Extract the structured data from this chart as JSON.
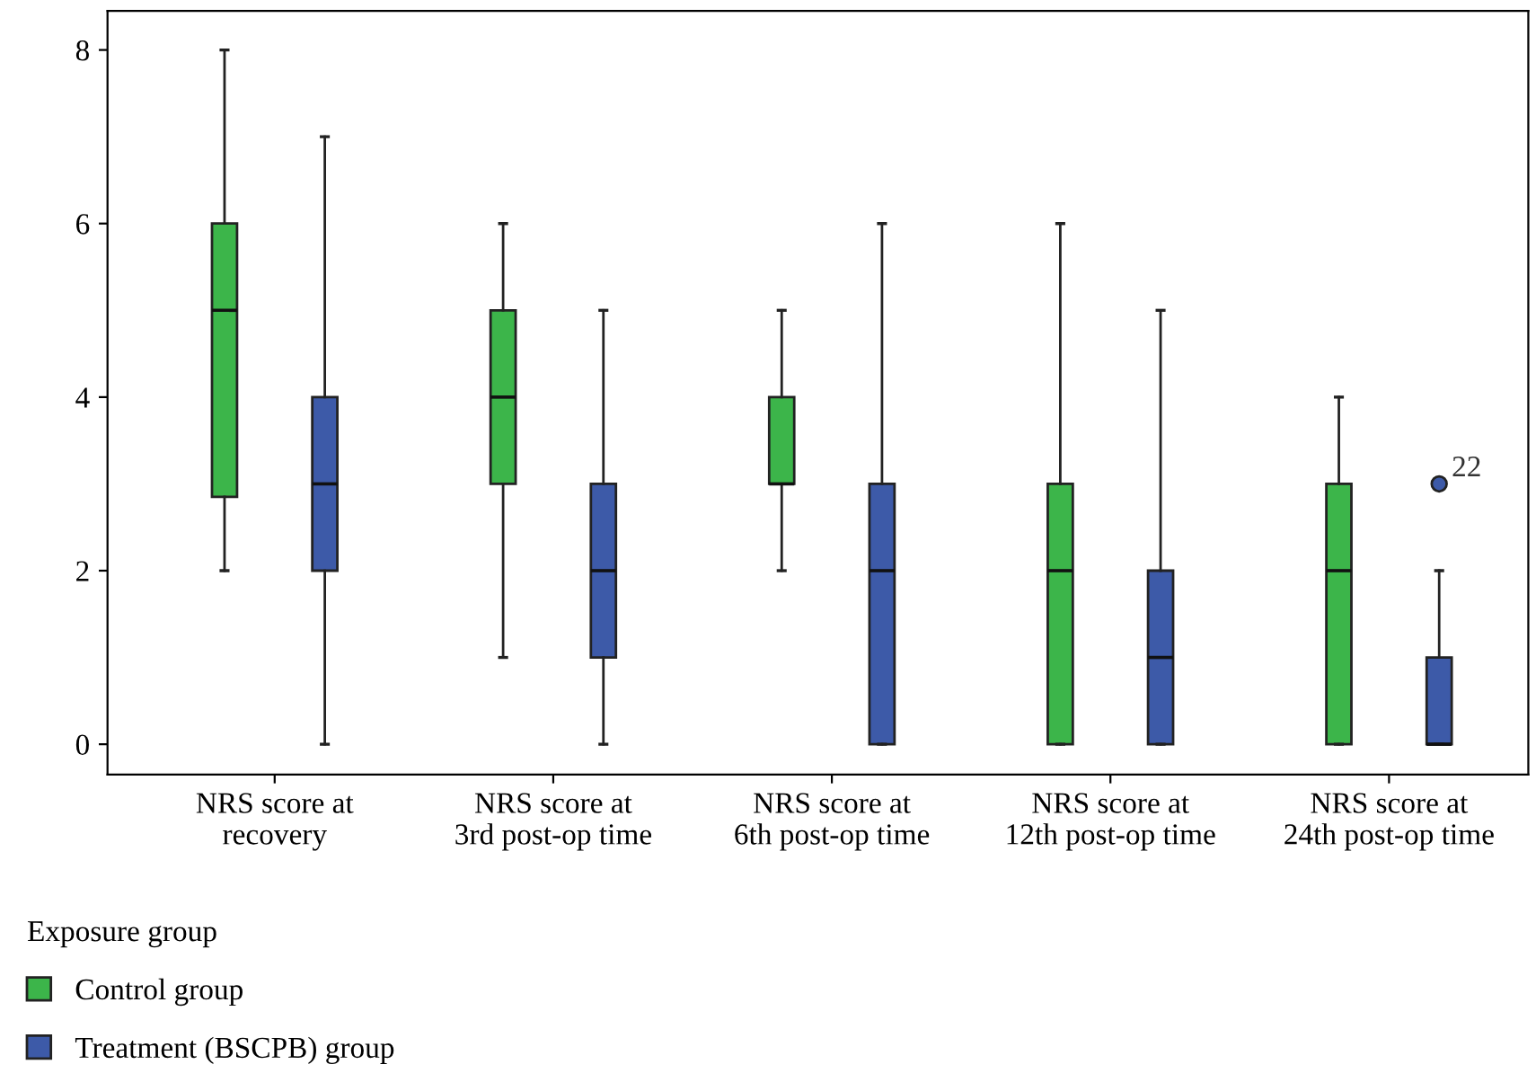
{
  "chart_data": {
    "type": "box",
    "categories": [
      "NRS score at\nrecovery",
      "NRS score at\n3rd post-op time",
      "NRS score at\n6th post-op time",
      "NRS score at\n12th post-op time",
      "NRS score at\n24th post-op time"
    ],
    "series": [
      {
        "name": "Control group",
        "color": "#3cb54a",
        "boxes": [
          {
            "low": 2,
            "q1": 2.85,
            "median": 5,
            "q3": 6,
            "high": 8
          },
          {
            "low": 1,
            "q1": 3,
            "median": 4,
            "q3": 5,
            "high": 6
          },
          {
            "low": 2,
            "q1": 3,
            "median": 3,
            "q3": 4,
            "high": 5
          },
          {
            "low": 0,
            "q1": 0,
            "median": 2,
            "q3": 3,
            "high": 6
          },
          {
            "low": 0,
            "q1": 0,
            "median": 2,
            "q3": 3,
            "high": 4
          }
        ]
      },
      {
        "name": "Treatment (BSCPB) group",
        "color": "#3d5aa8",
        "boxes": [
          {
            "low": 0,
            "q1": 2,
            "median": 3,
            "q3": 4,
            "high": 7
          },
          {
            "low": 0,
            "q1": 1,
            "median": 2,
            "q3": 3,
            "high": 5
          },
          {
            "low": 0,
            "q1": 0,
            "median": 2,
            "q3": 3,
            "high": 6
          },
          {
            "low": 0,
            "q1": 0,
            "median": 1,
            "q3": 2,
            "high": 5
          },
          {
            "low": 0,
            "q1": 0,
            "median": 0,
            "q3": 1,
            "high": 2,
            "outliers": [
              3
            ]
          }
        ]
      }
    ],
    "annotations": [
      "22"
    ],
    "legend_title": "Exposure group",
    "legend": "bottom left",
    "ylim": [
      -0.35,
      8.45
    ],
    "yticks": [
      0,
      2,
      4,
      6,
      8
    ],
    "grid": false
  }
}
